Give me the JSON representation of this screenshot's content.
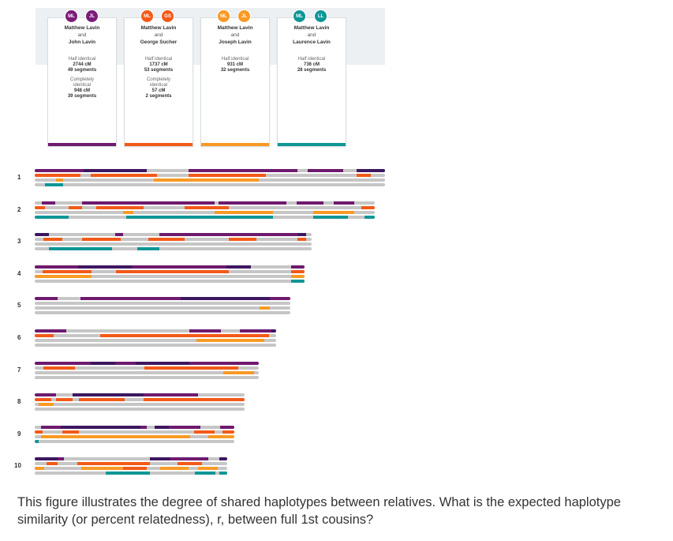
{
  "colors": {
    "purple": "#6e1a6e",
    "orange_red": "#f25a18",
    "orange": "#f89a25",
    "teal": "#0e9696",
    "grey": "#c6c6c6",
    "dark_purple": "#3d1760"
  },
  "cards": [
    {
      "avatars": [
        {
          "text": "ML",
          "color": "#7b1c7b"
        },
        {
          "text": "JL",
          "color": "#7b1c7b"
        }
      ],
      "name1": "Matthew Lavin",
      "and": "and",
      "name2": "John Lavin",
      "half_label": "Half identical",
      "half_cm": "2744 cM",
      "half_segments": "49 segments",
      "complete_label_1": "Completely",
      "complete_label_2": "identical",
      "complete_cm": "948 cM",
      "complete_segments": "39 segments",
      "bar_color": "#6e1a6e"
    },
    {
      "avatars": [
        {
          "text": "ML",
          "color": "#f25a18"
        },
        {
          "text": "GS",
          "color": "#f25a18"
        }
      ],
      "name1": "Matthew Lavin",
      "and": "and",
      "name2": "George Sucher",
      "half_label": "Half identical",
      "half_cm": "1737 cM",
      "half_segments": "53 segments",
      "complete_label_1": "Completely",
      "complete_label_2": "identical",
      "complete_cm": "57 cM",
      "complete_segments": "2 segments",
      "bar_color": "#f25a18"
    },
    {
      "avatars": [
        {
          "text": "ML",
          "color": "#f89a25"
        },
        {
          "text": "JL",
          "color": "#f89a25"
        }
      ],
      "name1": "Matthew Lavin",
      "and": "and",
      "name2": "Joseph Lavin",
      "half_label": "Half identical",
      "half_cm": "931 cM",
      "half_segments": "32 segments",
      "bar_color": "#f89a25"
    },
    {
      "avatars": [
        {
          "text": "ML",
          "color": "#0e9696"
        },
        {
          "text": "LL",
          "color": "#0e9696"
        }
      ],
      "name1": "Matthew Lavin",
      "and": "and",
      "name2": "Laurence Lavin",
      "half_label": "Half identical",
      "half_cm": "736 cM",
      "half_segments": "28 segments",
      "bar_color": "#0e9696"
    }
  ],
  "chromosomes": [
    {
      "label": "1",
      "length": 1.0,
      "tracks": [
        [
          {
            "s": 0.0,
            "e": 0.14,
            "c": "purple"
          },
          {
            "s": 0.14,
            "e": 0.32,
            "c": "dark_purple"
          },
          {
            "s": 0.44,
            "e": 0.75,
            "c": "purple"
          },
          {
            "s": 0.78,
            "e": 0.88,
            "c": "purple"
          },
          {
            "s": 0.92,
            "e": 1.0,
            "c": "dark_purple"
          }
        ],
        [
          {
            "s": 0.0,
            "e": 0.13,
            "c": "orange_red"
          },
          {
            "s": 0.16,
            "e": 0.35,
            "c": "orange_red"
          },
          {
            "s": 0.44,
            "e": 0.66,
            "c": "orange_red"
          },
          {
            "s": 0.92,
            "e": 0.96,
            "c": "orange_red"
          }
        ],
        [
          {
            "s": 0.06,
            "e": 0.08,
            "c": "orange"
          },
          {
            "s": 0.34,
            "e": 0.64,
            "c": "orange"
          }
        ],
        [
          {
            "s": 0.03,
            "e": 0.08,
            "c": "teal"
          }
        ]
      ]
    },
    {
      "label": "2",
      "length": 0.97,
      "tracks": [
        [
          {
            "s": 0.02,
            "e": 0.06,
            "c": "purple"
          },
          {
            "s": 0.14,
            "e": 0.53,
            "c": "purple"
          },
          {
            "s": 0.54,
            "e": 0.74,
            "c": "purple"
          },
          {
            "s": 0.77,
            "e": 0.85,
            "c": "purple"
          },
          {
            "s": 0.88,
            "e": 0.94,
            "c": "purple"
          }
        ],
        [
          {
            "s": 0.0,
            "e": 0.03,
            "c": "orange_red"
          },
          {
            "s": 0.1,
            "e": 0.14,
            "c": "orange_red"
          },
          {
            "s": 0.18,
            "e": 0.32,
            "c": "orange_red"
          },
          {
            "s": 0.44,
            "e": 0.57,
            "c": "orange_red"
          },
          {
            "s": 0.96,
            "e": 1.0,
            "c": "orange_red"
          }
        ],
        [
          {
            "s": 0.26,
            "e": 0.29,
            "c": "orange"
          },
          {
            "s": 0.53,
            "e": 0.7,
            "c": "orange"
          },
          {
            "s": 0.82,
            "e": 0.94,
            "c": "orange"
          }
        ],
        [
          {
            "s": 0.0,
            "e": 0.1,
            "c": "teal"
          },
          {
            "s": 0.27,
            "e": 0.7,
            "c": "teal"
          },
          {
            "s": 0.82,
            "e": 0.92,
            "c": "teal"
          },
          {
            "s": 0.97,
            "e": 1.0,
            "c": "teal"
          }
        ]
      ]
    },
    {
      "label": "3",
      "length": 0.79,
      "tracks": [
        [
          {
            "s": 0.0,
            "e": 0.05,
            "c": "dark_purple"
          },
          {
            "s": 0.29,
            "e": 0.32,
            "c": "purple"
          },
          {
            "s": 0.45,
            "e": 0.95,
            "c": "purple"
          },
          {
            "s": 0.95,
            "e": 0.98,
            "c": "dark_purple"
          }
        ],
        [
          {
            "s": 0.03,
            "e": 0.1,
            "c": "orange_red"
          },
          {
            "s": 0.17,
            "e": 0.31,
            "c": "orange_red"
          },
          {
            "s": 0.41,
            "e": 0.54,
            "c": "orange_red"
          },
          {
            "s": 0.7,
            "e": 0.8,
            "c": "orange_red"
          },
          {
            "s": 0.95,
            "e": 0.98,
            "c": "orange_red"
          }
        ],
        [],
        [
          {
            "s": 0.05,
            "e": 0.28,
            "c": "teal"
          },
          {
            "s": 0.37,
            "e": 0.45,
            "c": "teal"
          }
        ]
      ]
    },
    {
      "label": "4",
      "length": 0.77,
      "tracks": [
        [
          {
            "s": 0.0,
            "e": 0.16,
            "c": "purple"
          },
          {
            "s": 0.16,
            "e": 0.36,
            "c": "dark_purple"
          },
          {
            "s": 0.36,
            "e": 0.71,
            "c": "purple"
          },
          {
            "s": 0.71,
            "e": 0.8,
            "c": "dark_purple"
          },
          {
            "s": 0.95,
            "e": 1.0,
            "c": "purple"
          }
        ],
        [
          {
            "s": 0.03,
            "e": 0.21,
            "c": "orange_red"
          },
          {
            "s": 0.3,
            "e": 0.72,
            "c": "orange_red"
          },
          {
            "s": 0.95,
            "e": 1.0,
            "c": "orange_red"
          }
        ],
        [
          {
            "s": 0.0,
            "e": 0.21,
            "c": "orange"
          },
          {
            "s": 0.95,
            "e": 1.0,
            "c": "orange"
          }
        ],
        [
          {
            "s": 0.95,
            "e": 1.0,
            "c": "teal"
          }
        ]
      ]
    },
    {
      "label": "5",
      "length": 0.73,
      "tracks": [
        [
          {
            "s": 0.0,
            "e": 0.09,
            "c": "purple"
          },
          {
            "s": 0.18,
            "e": 0.57,
            "c": "purple"
          },
          {
            "s": 0.57,
            "e": 0.92,
            "c": "dark_purple"
          },
          {
            "s": 0.92,
            "e": 1.0,
            "c": "purple"
          }
        ],
        [],
        [
          {
            "s": 0.88,
            "e": 0.92,
            "c": "orange"
          }
        ],
        []
      ]
    },
    {
      "label": "6",
      "length": 0.69,
      "tracks": [
        [
          {
            "s": 0.0,
            "e": 0.13,
            "c": "purple"
          },
          {
            "s": 0.64,
            "e": 0.77,
            "c": "purple"
          },
          {
            "s": 0.85,
            "e": 0.98,
            "c": "purple"
          },
          {
            "s": 0.98,
            "e": 1.0,
            "c": "dark_purple"
          }
        ],
        [
          {
            "s": 0.0,
            "e": 0.08,
            "c": "orange_red"
          },
          {
            "s": 0.27,
            "e": 0.97,
            "c": "orange_red"
          }
        ],
        [
          {
            "s": 0.67,
            "e": 0.95,
            "c": "orange"
          }
        ],
        []
      ]
    },
    {
      "label": "7",
      "length": 0.64,
      "tracks": [
        [
          {
            "s": 0.0,
            "e": 0.04,
            "c": "purple"
          },
          {
            "s": 0.04,
            "e": 0.25,
            "c": "purple"
          },
          {
            "s": 0.25,
            "e": 0.36,
            "c": "dark_purple"
          },
          {
            "s": 0.36,
            "e": 0.45,
            "c": "purple"
          },
          {
            "s": 0.45,
            "e": 0.69,
            "c": "dark_purple"
          },
          {
            "s": 0.69,
            "e": 1.0,
            "c": "purple"
          }
        ],
        [
          {
            "s": 0.04,
            "e": 0.18,
            "c": "orange_red"
          },
          {
            "s": 0.49,
            "e": 0.91,
            "c": "orange_red"
          }
        ],
        [
          {
            "s": 0.84,
            "e": 0.98,
            "c": "orange"
          }
        ],
        []
      ]
    },
    {
      "label": "8",
      "length": 0.6,
      "tracks": [
        [
          {
            "s": 0.0,
            "e": 0.1,
            "c": "purple"
          },
          {
            "s": 0.18,
            "e": 0.52,
            "c": "dark_purple"
          },
          {
            "s": 0.52,
            "e": 0.78,
            "c": "purple"
          }
        ],
        [
          {
            "s": 0.0,
            "e": 0.08,
            "c": "orange_red"
          },
          {
            "s": 0.1,
            "e": 0.18,
            "c": "orange_red"
          },
          {
            "s": 0.21,
            "e": 0.43,
            "c": "orange_red"
          },
          {
            "s": 0.52,
            "e": 1.0,
            "c": "orange_red"
          }
        ],
        [
          {
            "s": 0.02,
            "e": 0.09,
            "c": "orange"
          }
        ],
        []
      ]
    },
    {
      "label": "9",
      "length": 0.57,
      "tracks": [
        [
          {
            "s": 0.03,
            "e": 0.13,
            "c": "purple"
          },
          {
            "s": 0.13,
            "e": 0.53,
            "c": "dark_purple"
          },
          {
            "s": 0.53,
            "e": 0.56,
            "c": "purple"
          },
          {
            "s": 0.6,
            "e": 0.67,
            "c": "dark_purple"
          },
          {
            "s": 0.67,
            "e": 0.83,
            "c": "purple"
          },
          {
            "s": 0.93,
            "e": 1.0,
            "c": "purple"
          }
        ],
        [
          {
            "s": 0.0,
            "e": 0.04,
            "c": "orange_red"
          },
          {
            "s": 0.14,
            "e": 0.22,
            "c": "orange_red"
          },
          {
            "s": 0.8,
            "e": 0.9,
            "c": "orange_red"
          },
          {
            "s": 0.94,
            "e": 1.0,
            "c": "orange_red"
          }
        ],
        [
          {
            "s": 0.03,
            "e": 0.11,
            "c": "orange"
          },
          {
            "s": 0.11,
            "e": 0.78,
            "c": "orange"
          },
          {
            "s": 0.87,
            "e": 1.0,
            "c": "orange"
          }
        ],
        [
          {
            "s": 0.0,
            "e": 0.02,
            "c": "teal"
          }
        ]
      ]
    },
    {
      "label": "10",
      "length": 0.55,
      "tracks": [
        [
          {
            "s": 0.0,
            "e": 0.12,
            "c": "dark_purple"
          },
          {
            "s": 0.12,
            "e": 0.15,
            "c": "purple"
          },
          {
            "s": 0.6,
            "e": 0.7,
            "c": "dark_purple"
          },
          {
            "s": 0.7,
            "e": 0.9,
            "c": "purple"
          },
          {
            "s": 0.96,
            "e": 1.0,
            "c": "dark_purple"
          }
        ],
        [
          {
            "s": 0.06,
            "e": 0.12,
            "c": "orange_red"
          },
          {
            "s": 0.22,
            "e": 0.6,
            "c": "orange_red"
          },
          {
            "s": 0.74,
            "e": 0.87,
            "c": "orange_red"
          }
        ],
        [
          {
            "s": 0.0,
            "e": 0.05,
            "c": "orange"
          },
          {
            "s": 0.24,
            "e": 0.46,
            "c": "orange"
          },
          {
            "s": 0.46,
            "e": 0.58,
            "c": "orange_red"
          },
          {
            "s": 0.65,
            "e": 0.8,
            "c": "orange"
          },
          {
            "s": 0.85,
            "e": 0.95,
            "c": "orange"
          }
        ],
        [
          {
            "s": 0.37,
            "e": 0.6,
            "c": "teal"
          },
          {
            "s": 0.83,
            "e": 0.94,
            "c": "teal"
          },
          {
            "s": 0.96,
            "e": 1.0,
            "c": "teal"
          }
        ]
      ]
    }
  ],
  "question": "This figure illustrates the degree of shared haplotypes between relatives. What is the expected haplotype similarity (or percent relatedness), r, between full 1st cousins?"
}
